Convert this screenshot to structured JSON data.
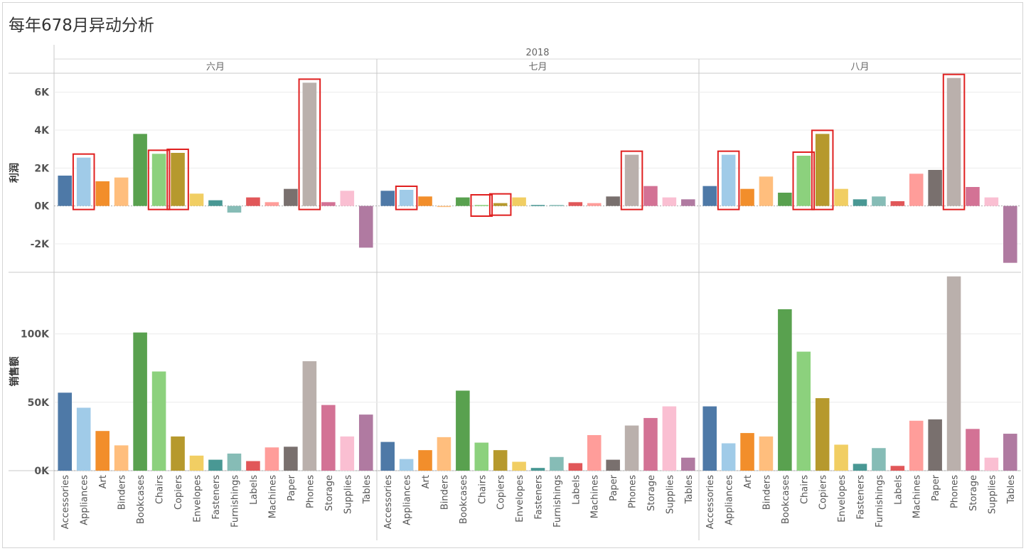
{
  "title": "每年678月异动分析",
  "chart_data": {
    "type": "bar",
    "year": "2018",
    "panels": [
      "六月",
      "七月",
      "八月"
    ],
    "categories": [
      "Accessories",
      "Appliances",
      "Art",
      "Binders",
      "Bookcases",
      "Chairs",
      "Copiers",
      "Envelopes",
      "Fasteners",
      "Furnishings",
      "Labels",
      "Machines",
      "Paper",
      "Phones",
      "Storage",
      "Supplies",
      "Tables"
    ],
    "category_colors": [
      "#4e79a7",
      "#a0cbe8",
      "#f28e2b",
      "#ffbe7d",
      "#59a14f",
      "#8cd17d",
      "#b6992d",
      "#f1ce63",
      "#499894",
      "#86bcb6",
      "#e15759",
      "#ff9d9a",
      "#79706e",
      "#bab0ac",
      "#d37295",
      "#fabfd2",
      "#b07aa1"
    ],
    "highlight_color": "#e02020",
    "rows": [
      {
        "label": "利润",
        "ylim": [
          -3500,
          7000
        ],
        "ticks": [
          6000,
          4000,
          2000,
          0,
          -2000
        ],
        "tick_labels": [
          "6K",
          "4K",
          "2K",
          "0K",
          "-2K"
        ],
        "values": [
          [
            1600,
            2550,
            1300,
            1500,
            3800,
            2750,
            2800,
            650,
            300,
            -350,
            450,
            200,
            900,
            6500,
            200,
            800,
            -2200
          ],
          [
            800,
            850,
            500,
            0,
            450,
            50,
            150,
            450,
            50,
            50,
            200,
            150,
            500,
            2700,
            1050,
            450,
            350
          ],
          [
            1050,
            2700,
            900,
            1550,
            700,
            2650,
            3800,
            900,
            350,
            500,
            250,
            1700,
            1900,
            6750,
            1000,
            450,
            -3000
          ]
        ],
        "highlights": [
          [
            "Appliances",
            "Chairs",
            "Copiers",
            "Phones"
          ],
          [
            "Appliances",
            "Chairs",
            "Copiers",
            "Phones"
          ],
          [
            "Appliances",
            "Chairs",
            "Copiers",
            "Phones"
          ]
        ]
      },
      {
        "label": "销售额",
        "ylim": [
          0,
          145000
        ],
        "ticks": [
          100000,
          50000,
          0
        ],
        "tick_labels": [
          "100K",
          "50K",
          "0K"
        ],
        "values": [
          [
            57000,
            46000,
            29000,
            18500,
            101000,
            72500,
            25000,
            11000,
            8000,
            12500,
            7000,
            17000,
            17500,
            80000,
            48000,
            25000,
            41000
          ],
          [
            21000,
            8500,
            15000,
            24500,
            58500,
            20500,
            15000,
            6500,
            2000,
            10000,
            5500,
            26000,
            8000,
            33000,
            38500,
            47000,
            9500
          ],
          [
            47000,
            20000,
            27500,
            25000,
            118000,
            87000,
            53000,
            19000,
            5000,
            16500,
            3500,
            36500,
            37500,
            142000,
            30500,
            9500,
            27000
          ]
        ]
      }
    ]
  }
}
